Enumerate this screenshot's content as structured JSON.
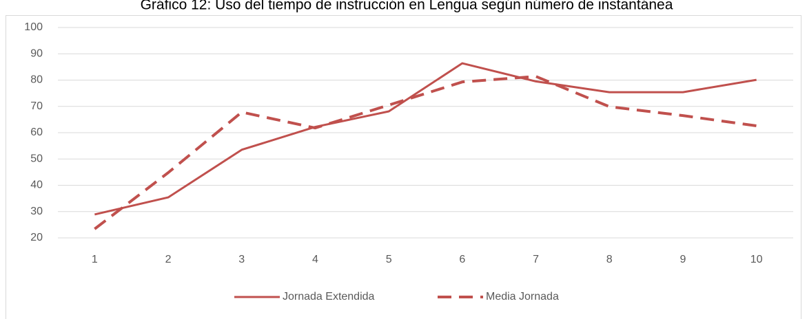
{
  "chart_data": {
    "type": "line",
    "title": "Gráfico 12: Uso del tiempo de instrucción en Lengua según número de instantánea",
    "categories": [
      "1",
      "2",
      "3",
      "4",
      "5",
      "6",
      "7",
      "8",
      "9",
      "10"
    ],
    "series": [
      {
        "name": "Jornada Extendida",
        "color": "#c0504d",
        "dash": false,
        "values": [
          28.9,
          35.4,
          53.5,
          62.2,
          68.1,
          86.4,
          79.5,
          75.4,
          75.4,
          80.1
        ]
      },
      {
        "name": "Media Jornada",
        "color": "#c0504d",
        "dash": true,
        "values": [
          23.4,
          44.8,
          67.8,
          61.8,
          70.5,
          79.3,
          81.4,
          69.9,
          66.5,
          62.6
        ]
      }
    ],
    "ylim": [
      20,
      100
    ],
    "yticks": [
      20,
      30,
      40,
      50,
      60,
      70,
      80,
      90,
      100
    ],
    "grid": true,
    "legend": "bottom"
  }
}
